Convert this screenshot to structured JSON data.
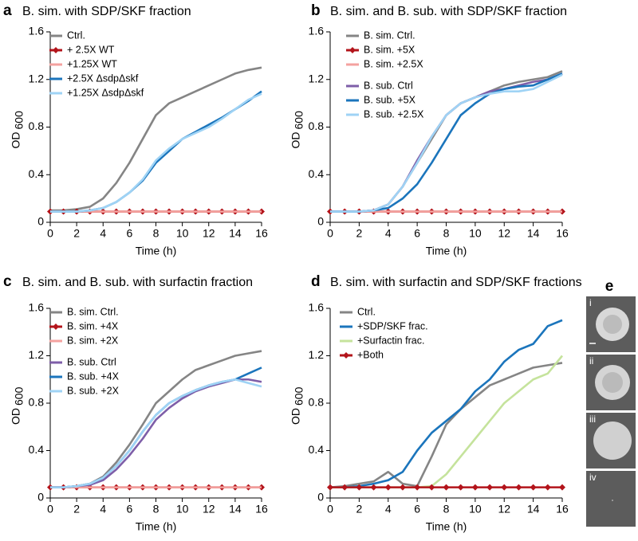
{
  "chart_data": [
    {
      "type": "line",
      "label": "a",
      "title": "B. sim. with SDP/SKF fraction",
      "xlabel": "Time (h)",
      "ylabel": "OD",
      "ylabel_subscript": "600",
      "x": [
        0,
        1,
        2,
        3,
        4,
        5,
        6,
        7,
        8,
        9,
        10,
        11,
        12,
        13,
        14,
        15,
        16
      ],
      "xlim": [
        0,
        16
      ],
      "xticks": [
        0,
        2,
        4,
        6,
        8,
        10,
        12,
        14,
        16
      ],
      "ylim": [
        0,
        1.6
      ],
      "yticks": [
        0,
        0.4,
        0.8,
        1.2,
        1.6
      ],
      "series": [
        {
          "name": "Ctrl.",
          "color": "#858585",
          "values": [
            0.1,
            0.1,
            0.11,
            0.13,
            0.2,
            0.33,
            0.5,
            0.7,
            0.9,
            1.0,
            1.05,
            1.1,
            1.15,
            1.2,
            1.25,
            1.28,
            1.3
          ]
        },
        {
          "name": "+ 2.5X WT",
          "color": "#b3141b",
          "marker": "diamond",
          "values": [
            0.09,
            0.09,
            0.09,
            0.09,
            0.09,
            0.09,
            0.09,
            0.09,
            0.09,
            0.09,
            0.09,
            0.09,
            0.09,
            0.09,
            0.09,
            0.09,
            0.09
          ]
        },
        {
          "name": "+1.25X WT",
          "color": "#f4a29f",
          "values": [
            0.09,
            0.09,
            0.09,
            0.09,
            0.09,
            0.09,
            0.09,
            0.09,
            0.09,
            0.09,
            0.09,
            0.09,
            0.09,
            0.09,
            0.09,
            0.09,
            0.09
          ]
        },
        {
          "name": "+2.5X ΔsdpΔskf",
          "color": "#1b75bc",
          "values": [
            0.09,
            0.09,
            0.09,
            0.1,
            0.12,
            0.17,
            0.25,
            0.35,
            0.5,
            0.6,
            0.7,
            0.76,
            0.82,
            0.88,
            0.95,
            1.02,
            1.1
          ]
        },
        {
          "name": "+1.25X ΔsdpΔskf",
          "color": "#9fd3f5",
          "values": [
            0.09,
            0.09,
            0.09,
            0.1,
            0.12,
            0.17,
            0.25,
            0.36,
            0.52,
            0.62,
            0.7,
            0.75,
            0.8,
            0.87,
            0.95,
            1.03,
            1.08
          ]
        }
      ]
    },
    {
      "type": "line",
      "label": "b",
      "title": "B. sim. and B. sub. with SDP/SKF fraction",
      "xlabel": "Time (h)",
      "ylabel": "OD",
      "ylabel_subscript": "600",
      "x": [
        0,
        1,
        2,
        3,
        4,
        5,
        6,
        7,
        8,
        9,
        10,
        11,
        12,
        13,
        14,
        15,
        16
      ],
      "xlim": [
        0,
        16
      ],
      "xticks": [
        0,
        2,
        4,
        6,
        8,
        10,
        12,
        14,
        16
      ],
      "ylim": [
        0,
        1.6
      ],
      "yticks": [
        0,
        0.4,
        0.8,
        1.2,
        1.6
      ],
      "series": [
        {
          "name": "B. sim. Ctrl.",
          "color": "#858585",
          "values": [
            0.09,
            0.09,
            0.09,
            0.1,
            0.15,
            0.3,
            0.5,
            0.7,
            0.9,
            1.0,
            1.05,
            1.1,
            1.15,
            1.18,
            1.2,
            1.22,
            1.27
          ]
        },
        {
          "name": "B. sim. +5X",
          "color": "#b3141b",
          "marker": "diamond",
          "values": [
            0.09,
            0.09,
            0.09,
            0.09,
            0.09,
            0.09,
            0.09,
            0.09,
            0.09,
            0.09,
            0.09,
            0.09,
            0.09,
            0.09,
            0.09,
            0.09,
            0.09
          ]
        },
        {
          "name": "B. sim. +2.5X",
          "color": "#f4a29f",
          "values": [
            0.09,
            0.09,
            0.09,
            0.09,
            0.09,
            0.09,
            0.09,
            0.09,
            0.09,
            0.09,
            0.09,
            0.09,
            0.09,
            0.09,
            0.09,
            0.09,
            0.09
          ]
        },
        {
          "name": "B. sub. Ctrl",
          "color": "#7e5ea8",
          "values": [
            0.09,
            0.09,
            0.09,
            0.1,
            0.15,
            0.3,
            0.52,
            0.72,
            0.9,
            1.0,
            1.05,
            1.1,
            1.12,
            1.15,
            1.18,
            1.2,
            1.25
          ]
        },
        {
          "name": "B. sub. +5X",
          "color": "#1b75bc",
          "values": [
            0.09,
            0.09,
            0.09,
            0.1,
            0.12,
            0.2,
            0.32,
            0.5,
            0.7,
            0.9,
            1.0,
            1.08,
            1.12,
            1.14,
            1.15,
            1.2,
            1.25
          ]
        },
        {
          "name": "B. sub. +2.5X",
          "color": "#9fd3f5",
          "values": [
            0.09,
            0.09,
            0.09,
            0.1,
            0.15,
            0.3,
            0.5,
            0.72,
            0.9,
            1.0,
            1.05,
            1.08,
            1.1,
            1.1,
            1.12,
            1.18,
            1.24
          ]
        }
      ]
    },
    {
      "type": "line",
      "label": "c",
      "title": "B. sim. and B. sub. with surfactin fraction",
      "xlabel": "Time (h)",
      "ylabel": "OD",
      "ylabel_subscript": "600",
      "x": [
        0,
        1,
        2,
        3,
        4,
        5,
        6,
        7,
        8,
        9,
        10,
        11,
        12,
        13,
        14,
        15,
        16
      ],
      "xlim": [
        0,
        16
      ],
      "xticks": [
        0,
        2,
        4,
        6,
        8,
        10,
        12,
        14,
        16
      ],
      "ylim": [
        0,
        1.6
      ],
      "yticks": [
        0,
        0.4,
        0.8,
        1.2,
        1.6
      ],
      "series": [
        {
          "name": "B. sim. Ctrl.",
          "color": "#858585",
          "values": [
            0.09,
            0.09,
            0.1,
            0.12,
            0.18,
            0.3,
            0.45,
            0.62,
            0.8,
            0.9,
            1.0,
            1.08,
            1.12,
            1.16,
            1.2,
            1.22,
            1.24
          ]
        },
        {
          "name": "B. sim. +4X",
          "color": "#b3141b",
          "marker": "diamond",
          "values": [
            0.09,
            0.09,
            0.09,
            0.09,
            0.09,
            0.09,
            0.09,
            0.09,
            0.09,
            0.09,
            0.09,
            0.09,
            0.09,
            0.09,
            0.09,
            0.09,
            0.09
          ]
        },
        {
          "name": "B. sim. +2X",
          "color": "#f4a29f",
          "values": [
            0.09,
            0.09,
            0.09,
            0.09,
            0.09,
            0.09,
            0.09,
            0.09,
            0.09,
            0.09,
            0.09,
            0.09,
            0.09,
            0.09,
            0.09,
            0.09,
            0.09
          ]
        },
        {
          "name": "B. sub. Ctrl",
          "color": "#7e5ea8",
          "values": [
            0.09,
            0.09,
            0.1,
            0.11,
            0.15,
            0.24,
            0.36,
            0.5,
            0.66,
            0.76,
            0.84,
            0.9,
            0.94,
            0.97,
            1.0,
            1.0,
            0.98
          ]
        },
        {
          "name": "B. sub. +4X",
          "color": "#1b75bc",
          "values": [
            0.09,
            0.09,
            0.1,
            0.12,
            0.17,
            0.27,
            0.4,
            0.56,
            0.7,
            0.8,
            0.86,
            0.91,
            0.95,
            0.98,
            1.0,
            1.05,
            1.1
          ]
        },
        {
          "name": "B. sub. +2X",
          "color": "#9fd3f5",
          "values": [
            0.09,
            0.09,
            0.1,
            0.12,
            0.17,
            0.27,
            0.4,
            0.56,
            0.7,
            0.8,
            0.86,
            0.91,
            0.95,
            0.98,
            1.0,
            0.97,
            0.94
          ]
        }
      ]
    },
    {
      "type": "line",
      "label": "d",
      "title": "B. sim. with surfactin and SDP/SKF fractions",
      "xlabel": "Time (h)",
      "ylabel": "OD",
      "ylabel_subscript": "600",
      "x": [
        0,
        1,
        2,
        3,
        4,
        5,
        6,
        7,
        8,
        9,
        10,
        11,
        12,
        13,
        14,
        15,
        16
      ],
      "xlim": [
        0,
        16
      ],
      "xticks": [
        0,
        2,
        4,
        6,
        8,
        10,
        12,
        14,
        16
      ],
      "ylim": [
        0,
        1.6
      ],
      "yticks": [
        0,
        0.4,
        0.8,
        1.2,
        1.6
      ],
      "series": [
        {
          "name": "Ctrl.",
          "color": "#858585",
          "values": [
            0.09,
            0.1,
            0.12,
            0.14,
            0.22,
            0.12,
            0.1,
            0.35,
            0.62,
            0.75,
            0.85,
            0.95,
            1.0,
            1.05,
            1.1,
            1.12,
            1.14
          ]
        },
        {
          "name": "+SDP/SKF frac.",
          "color": "#1b75bc",
          "values": [
            0.09,
            0.09,
            0.1,
            0.12,
            0.15,
            0.22,
            0.4,
            0.55,
            0.65,
            0.75,
            0.9,
            1.0,
            1.15,
            1.25,
            1.3,
            1.45,
            1.5
          ]
        },
        {
          "name": "+Surfactin frac.",
          "color": "#c5e39c",
          "values": [
            0.09,
            0.09,
            0.09,
            0.09,
            0.09,
            0.09,
            0.09,
            0.1,
            0.2,
            0.35,
            0.5,
            0.65,
            0.8,
            0.9,
            1.0,
            1.05,
            1.2
          ]
        },
        {
          "name": "+Both",
          "color": "#b3141b",
          "marker": "diamond",
          "values": [
            0.09,
            0.09,
            0.09,
            0.09,
            0.09,
            0.09,
            0.09,
            0.09,
            0.09,
            0.09,
            0.09,
            0.09,
            0.09,
            0.09,
            0.09,
            0.09,
            0.09
          ]
        }
      ]
    }
  ],
  "images": {
    "label": "e",
    "items": [
      "i",
      "ii",
      "iii",
      "iv"
    ]
  }
}
